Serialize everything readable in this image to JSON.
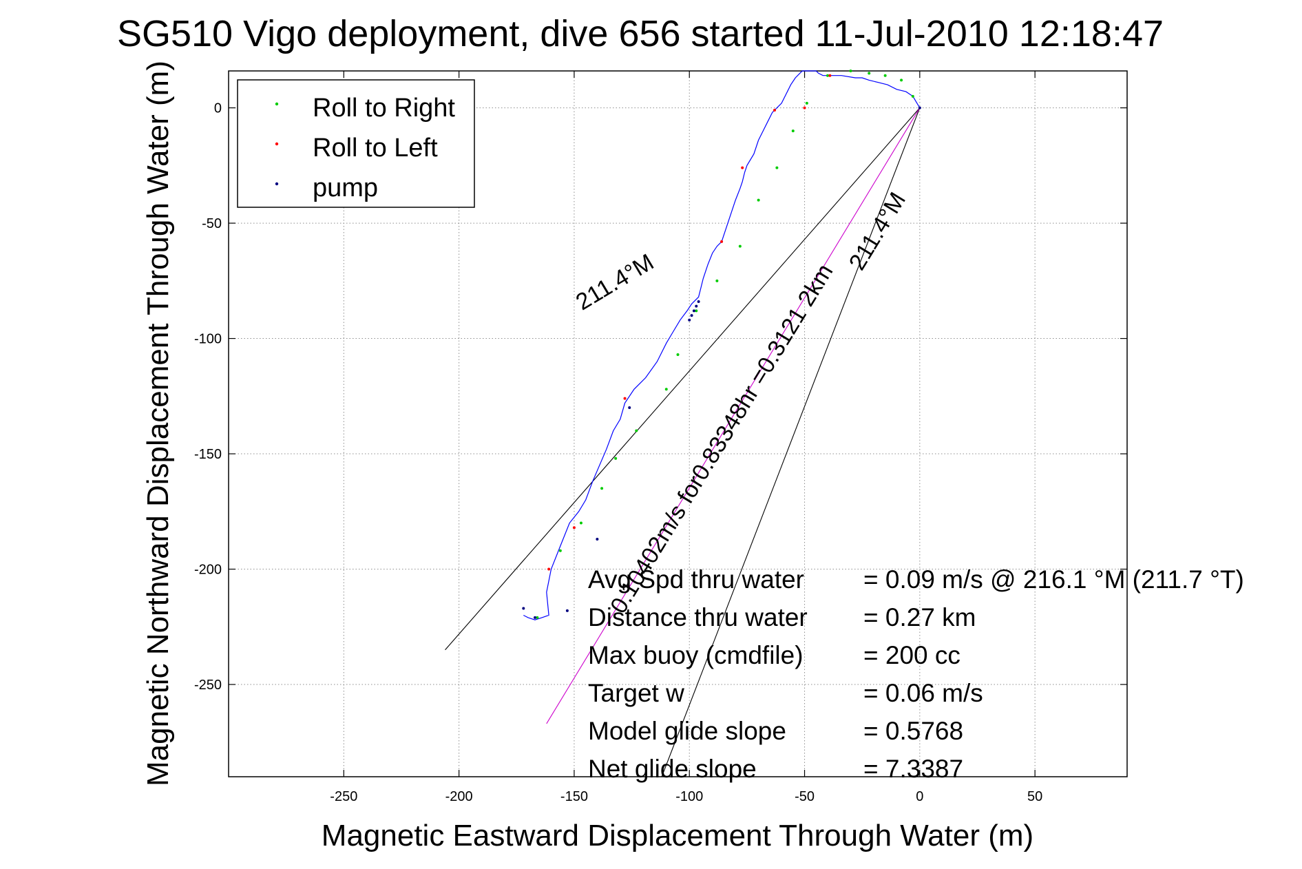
{
  "chart_data": {
    "type": "line",
    "title": "SG510 Vigo deployment, dive 656 started 11-Jul-2010 12:18:47",
    "xlabel": "Magnetic Eastward Displacement Through Water (m)",
    "ylabel": "Magnetic Northward Displacement Through Water (m)",
    "xlim": [
      -300,
      90
    ],
    "ylim": [
      -290,
      16
    ],
    "xticks": [
      -250,
      -200,
      -150,
      -100,
      -50,
      0,
      50
    ],
    "yticks": [
      0,
      -50,
      -100,
      -150,
      -200,
      -250
    ],
    "grid": true,
    "legend": {
      "placement": "top-left",
      "entries": [
        {
          "label": "Roll to Right",
          "color": "#00cc00"
        },
        {
          "label": "Roll to Left",
          "color": "#ff0000"
        },
        {
          "label": "pump",
          "color": "#000080"
        }
      ]
    },
    "track": {
      "name": "",
      "color": "#0000ff",
      "x": [
        -172,
        -170,
        -167,
        -164,
        -161,
        -162,
        -160,
        -156,
        -152,
        -148,
        -145,
        -142,
        -139,
        -136,
        -133,
        -130,
        -128,
        -124,
        -119,
        -114,
        -110,
        -107,
        -104,
        -101,
        -99,
        -96,
        -95,
        -94,
        -92,
        -90,
        -88,
        -86,
        -84,
        -82,
        -80,
        -78,
        -77,
        -76,
        -75,
        -72,
        -70,
        -68,
        -66,
        -64,
        -62,
        -60,
        -58,
        -56,
        -54,
        -52,
        -51,
        -50,
        -49,
        -48,
        -46,
        -45,
        -44,
        -42,
        -38,
        -34,
        -28,
        -25,
        -22,
        -18,
        -14,
        -10,
        -6,
        -3,
        0
      ],
      "y": [
        -220,
        -221,
        -222,
        -221,
        -220,
        -210,
        -200,
        -190,
        -180,
        -175,
        -170,
        -162,
        -155,
        -148,
        -140,
        -135,
        -128,
        -122,
        -117,
        -110,
        -102,
        -97,
        -92,
        -88,
        -85,
        -82,
        -78,
        -74,
        -68,
        -63,
        -60,
        -58,
        -52,
        -46,
        -40,
        -35,
        -32,
        -28,
        -25,
        -20,
        -14,
        -10,
        -6,
        -2,
        0,
        2,
        6,
        10,
        13,
        15,
        16,
        16,
        16,
        16,
        16,
        16,
        15,
        14,
        14,
        14,
        13,
        13,
        12,
        11,
        10,
        8,
        7,
        5,
        0
      ]
    },
    "markers": {
      "roll_right": {
        "x": [
          -166,
          -156,
          -147,
          -138,
          -132,
          -123,
          -110,
          -105,
          -97,
          -88,
          -78,
          -70,
          -62,
          -55,
          -49,
          -40,
          -30,
          -22,
          -15,
          -8,
          -3
        ],
        "y": [
          -221,
          -192,
          -180,
          -165,
          -152,
          -140,
          -122,
          -107,
          -88,
          -75,
          -60,
          -40,
          -26,
          -10,
          2,
          14,
          16,
          15,
          14,
          12,
          5
        ]
      },
      "roll_left": {
        "x": [
          -161,
          -150,
          -128,
          -86,
          -77,
          -63,
          -50,
          -39
        ],
        "y": [
          -200,
          -182,
          -126,
          -58,
          -26,
          -1,
          0,
          14
        ]
      },
      "pump": {
        "x": [
          -172,
          -167,
          -153,
          -140,
          -126,
          -100,
          -99,
          -98,
          -97,
          -96,
          0
        ],
        "y": [
          -217,
          -221,
          -218,
          -187,
          -130,
          -92,
          -90,
          -88,
          -86,
          -84,
          0
        ]
      }
    },
    "vectors": [
      {
        "color": "#000000",
        "x": [
          0,
          -206
        ],
        "y": [
          0,
          -235
        ]
      },
      {
        "color": "#000000",
        "x": [
          0,
          -112
        ],
        "y": [
          0,
          -290
        ]
      },
      {
        "color": "#cc00cc",
        "x": [
          0,
          -162
        ],
        "y": [
          0,
          -267
        ]
      }
    ],
    "annotations": [
      {
        "text": "0.10402m/s for0.83348hr =0.3121 2km",
        "angle_deg": 238.6
      },
      {
        "text": "211.4°M",
        "angle_deg": 238.6
      },
      {
        "text": "211.4°M",
        "angle_deg": 211.0
      }
    ],
    "stats": [
      {
        "label": "Avg Spd thru water",
        "value": "=  0.09 m/s @ 216.1 °M (211.7 °T)"
      },
      {
        "label": "Distance thru water",
        "value": "=  0.27 km"
      },
      {
        "label": "Max buoy (cmdfile)",
        "value": "= 200 cc"
      },
      {
        "label": "Target w",
        "value": "= 0.06 m/s"
      },
      {
        "label": "Model glide slope",
        "value": "= 0.5768"
      },
      {
        "label": "Net glide slope",
        "value": "= 7.3387"
      }
    ]
  }
}
